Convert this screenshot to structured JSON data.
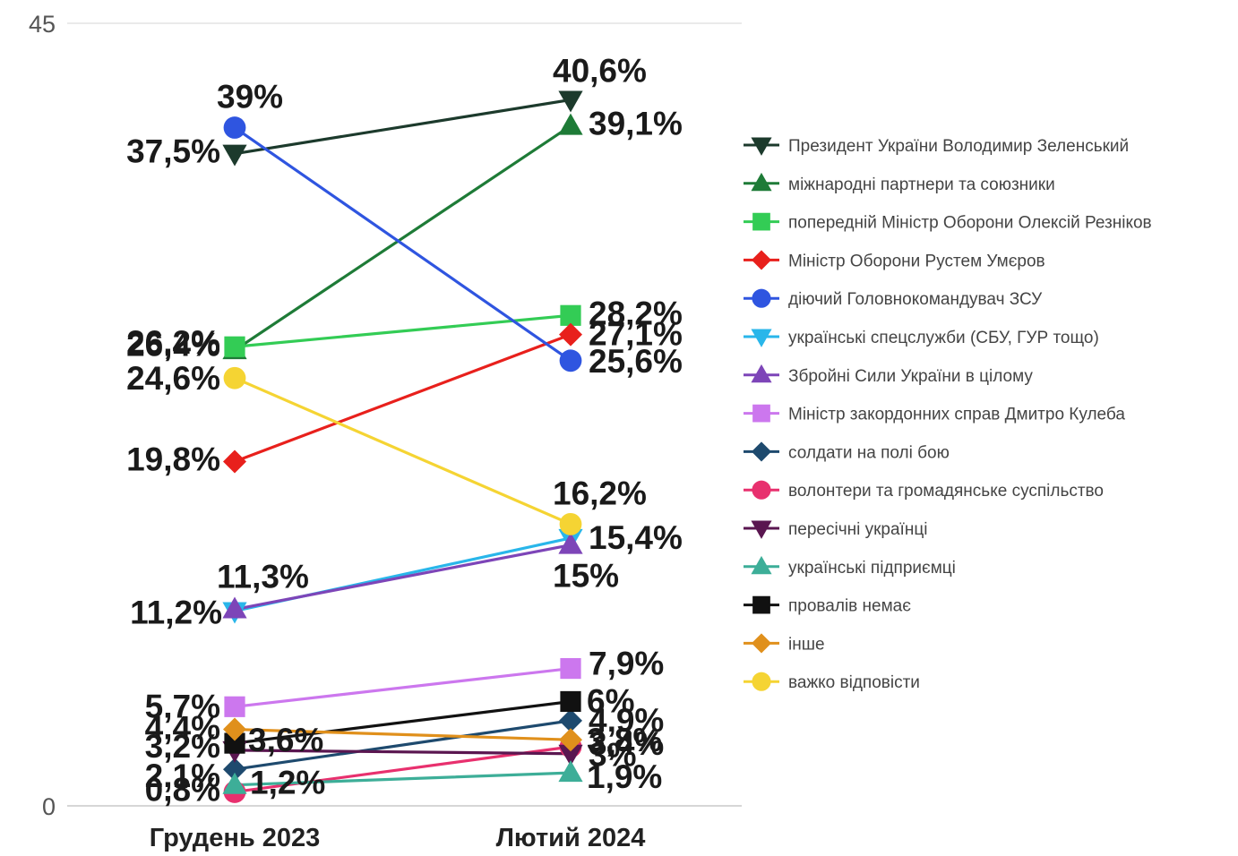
{
  "chart_data": {
    "type": "line",
    "categories": [
      "Грудень 2023",
      "Лютий 2024"
    ],
    "ylim": [
      0,
      45
    ],
    "y_ticks": [
      "0",
      "45"
    ],
    "grid": "horizontal",
    "legend_position": "right",
    "series": [
      {
        "name": "Президент України Володимир Зеленський",
        "values": [
          37.5,
          40.6
        ],
        "labels": [
          "37,5%",
          "40,6%"
        ],
        "color": "#1c3a2c",
        "marker": "triangle-down"
      },
      {
        "name": "міжнародні партнери та союзники",
        "values": [
          26.2,
          39.1
        ],
        "labels": [
          "26,2%",
          "39,1%"
        ],
        "color": "#1e7b37",
        "marker": "triangle-up"
      },
      {
        "name": "попередній Міністр Оборони Олексій Резніков",
        "values": [
          26.4,
          28.2
        ],
        "labels": [
          "26,4%",
          "28,2%"
        ],
        "color": "#33cc55",
        "marker": "square"
      },
      {
        "name": "Міністр Оборони Рустем Умєров",
        "values": [
          19.8,
          27.1
        ],
        "labels": [
          "19,8%",
          "27,1%"
        ],
        "color": "#e8201c",
        "marker": "diamond"
      },
      {
        "name": "діючий Головнокомандувач ЗСУ",
        "values": [
          39,
          25.6
        ],
        "labels": [
          "39%",
          "25,6%"
        ],
        "color": "#2f55e0",
        "marker": "circle"
      },
      {
        "name": "українські спецслужби (СБУ, ГУР тощо)",
        "values": [
          11.2,
          15.4
        ],
        "labels": [
          "11,2%",
          "15,4%"
        ],
        "color": "#29b6ea",
        "marker": "triangle-down"
      },
      {
        "name": "Збройні Сили України в цілому",
        "values": [
          11.3,
          15
        ],
        "labels": [
          "11,3%",
          "15%"
        ],
        "color": "#7d45b8",
        "marker": "triangle-up"
      },
      {
        "name": "Міністр закордонних справ Дмитро Кулеба",
        "values": [
          5.7,
          7.9
        ],
        "labels": [
          "5,7%",
          "7,9%"
        ],
        "color": "#cc77ee",
        "marker": "square"
      },
      {
        "name": "солдати на полі бою",
        "values": [
          2.1,
          4.9
        ],
        "labels": [
          "2,1%",
          "4,9%"
        ],
        "color": "#1e4a6e",
        "marker": "diamond"
      },
      {
        "name": "волонтери та громадянське суспільство",
        "values": [
          0.8,
          3.4
        ],
        "labels": [
          "0,8%",
          "3,4%"
        ],
        "color": "#e8306e",
        "marker": "circle"
      },
      {
        "name": "пересічні українці",
        "values": [
          3.2,
          3
        ],
        "labels": [
          "3,2%",
          "3%"
        ],
        "color": "#5a1650",
        "marker": "triangle-down"
      },
      {
        "name": "українські підприємці",
        "values": [
          1.2,
          1.9
        ],
        "labels": [
          "1,2%",
          "1,9%"
        ],
        "color": "#3dae98",
        "marker": "triangle-up"
      },
      {
        "name": "провалів немає",
        "values": [
          3.6,
          6
        ],
        "labels": [
          "3,6%",
          "6%"
        ],
        "color": "#111111",
        "marker": "square"
      },
      {
        "name": "інше",
        "values": [
          4.4,
          3.8
        ],
        "labels": [
          "4,4%",
          "3,8%"
        ],
        "color": "#e0901c",
        "marker": "diamond"
      },
      {
        "name": "важко відповісти",
        "values": [
          24.6,
          16.2
        ],
        "labels": [
          "24,6%",
          "16,2%"
        ],
        "color": "#f5d433",
        "marker": "circle"
      }
    ]
  }
}
